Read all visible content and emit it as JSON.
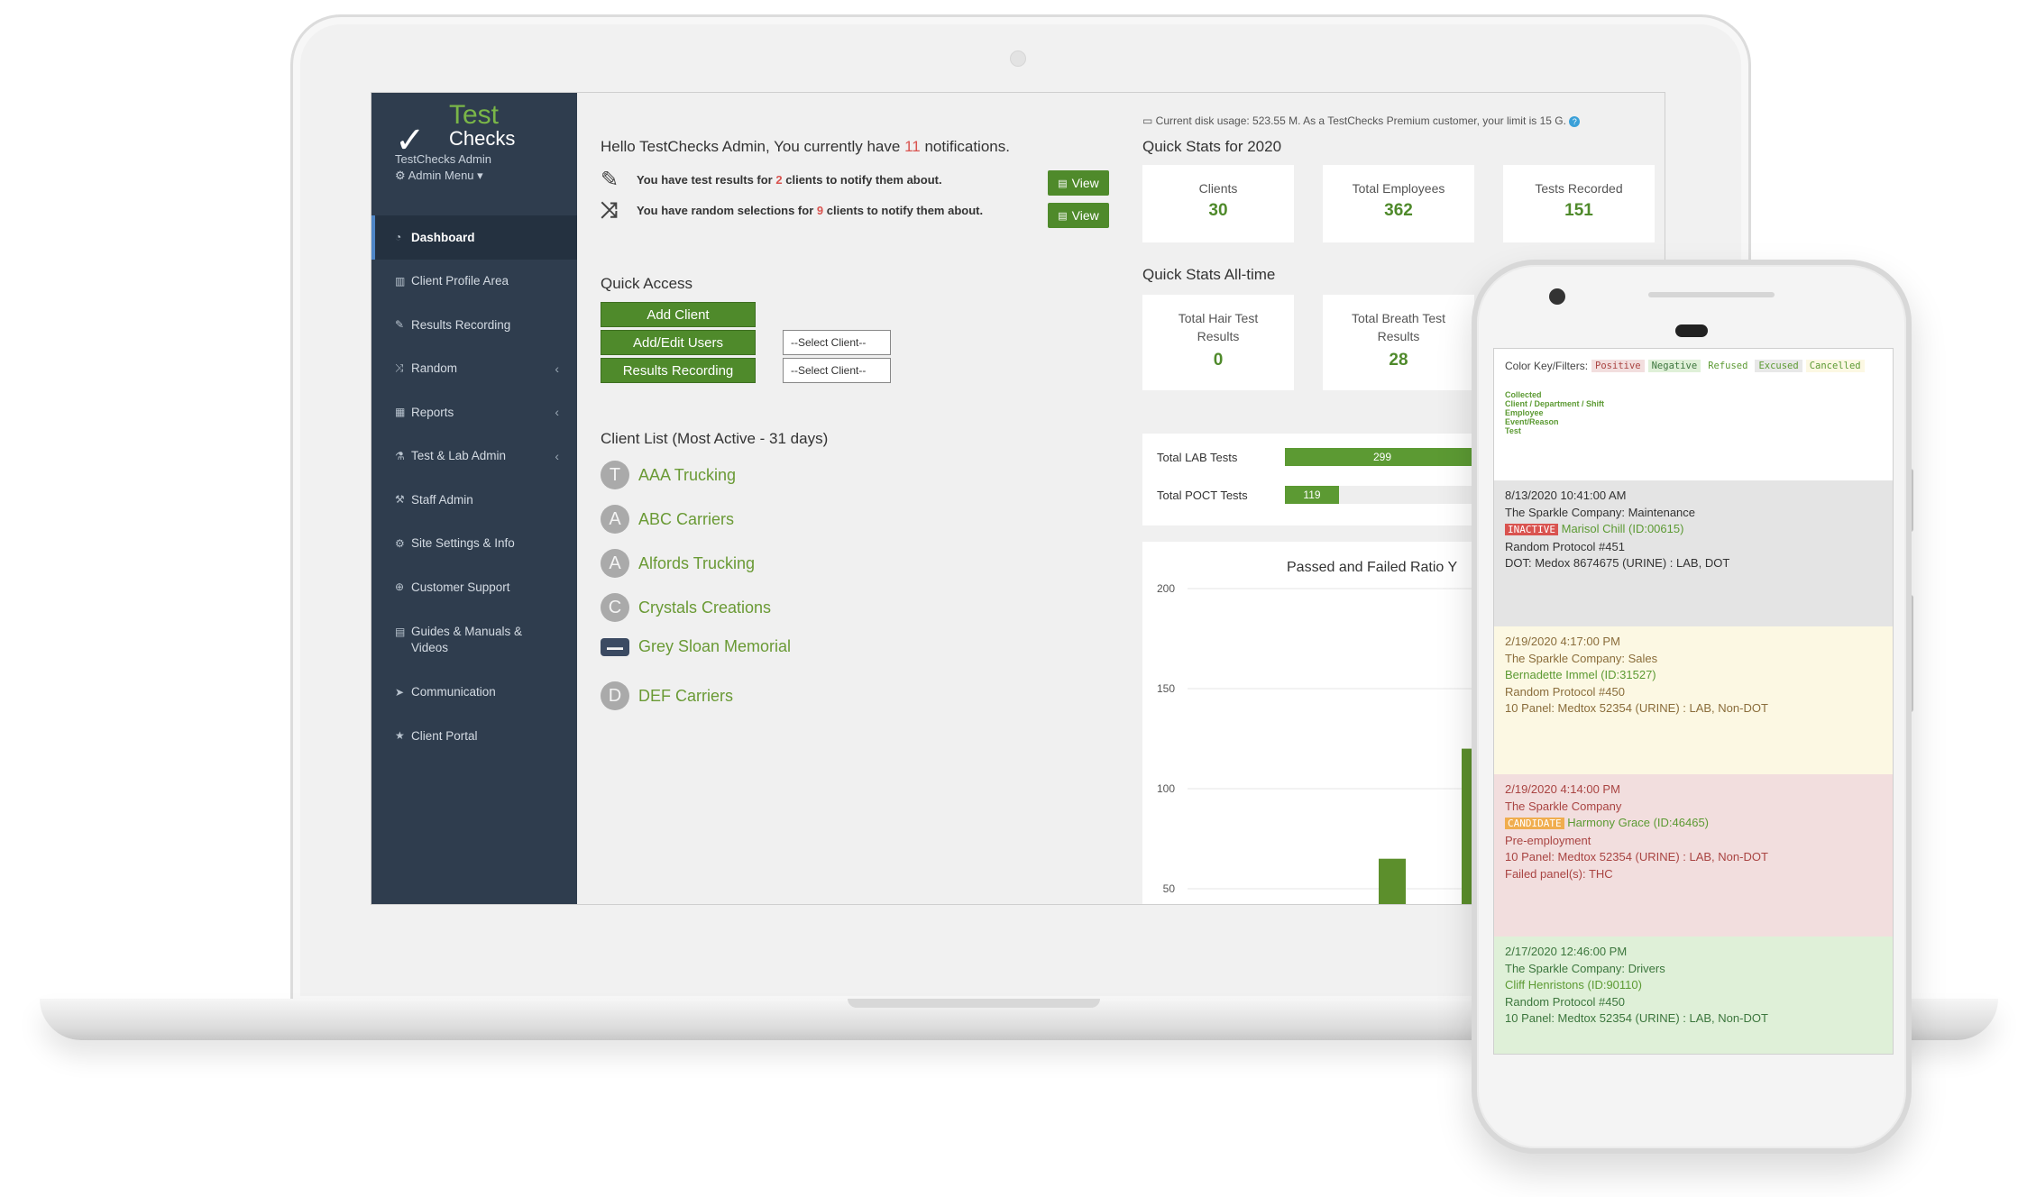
{
  "sidebar": {
    "logo_test": "Test",
    "logo_checks": "Checks",
    "admin_name": "TestChecks Admin",
    "admin_menu": "Admin Menu",
    "items": [
      {
        "label": "Dashboard",
        "icon": "dashboard-icon"
      },
      {
        "label": "Client Profile Area",
        "icon": "bank-icon"
      },
      {
        "label": "Results Recording",
        "icon": "edit-icon"
      },
      {
        "label": "Random",
        "icon": "shuffle-icon"
      },
      {
        "label": "Reports",
        "icon": "table-icon"
      },
      {
        "label": "Test & Lab Admin",
        "icon": "flask-icon"
      },
      {
        "label": "Staff Admin",
        "icon": "gavel-icon"
      },
      {
        "label": "Site Settings & Info",
        "icon": "cogs-icon"
      },
      {
        "label": "Customer Support",
        "icon": "life-ring-icon"
      },
      {
        "label": "Guides & Manuals & Videos",
        "icon": "file-icon"
      },
      {
        "label": "Communication",
        "icon": "send-icon"
      },
      {
        "label": "Client Portal",
        "icon": "star-icon"
      }
    ]
  },
  "greeting": {
    "prefix": "Hello TestChecks Admin, You currently have",
    "count": "11",
    "suffix": "notifications."
  },
  "notifications": [
    {
      "prefix": "You have test results for",
      "count": "2",
      "suffix": "clients to notify them about.",
      "button": "View"
    },
    {
      "prefix": "You have random selections for",
      "count": "9",
      "suffix": "clients to notify them about.",
      "button": "View"
    }
  ],
  "quick_access": {
    "title": "Quick Access",
    "buttons": [
      "Add Client",
      "Add/Edit Users",
      "Results Recording"
    ],
    "select_placeholder": "--Select Client--"
  },
  "client_list": {
    "title": "Client List (Most Active - 31 days)",
    "clients": [
      {
        "initial": "T",
        "name": "AAA Trucking"
      },
      {
        "initial": "A",
        "name": "ABC Carriers"
      },
      {
        "initial": "A",
        "name": "Alfords Trucking"
      },
      {
        "initial": "C",
        "name": "Crystals Creations"
      },
      {
        "initial": "",
        "name": "Grey Sloan Memorial"
      },
      {
        "initial": "D",
        "name": "DEF Carriers"
      }
    ]
  },
  "disk_usage": "Current disk usage: 523.55 M. As a TestChecks Premium customer, your limit is 15 G.",
  "quick_stats_year": {
    "title": "Quick Stats for 2020",
    "stats": [
      {
        "label": "Clients",
        "value": "30"
      },
      {
        "label": "Total Employees",
        "value": "362"
      },
      {
        "label": "Tests Recorded",
        "value": "151"
      }
    ]
  },
  "quick_stats_all": {
    "title": "Quick Stats All-time",
    "stats": [
      {
        "label": "Total Hair Test Results",
        "value": "0"
      },
      {
        "label": "Total Breath Test Results",
        "value": "28"
      }
    ]
  },
  "test_totals": [
    {
      "label": "Total LAB Tests",
      "value": "299",
      "fill": 0.9
    },
    {
      "label": "Total POCT Tests",
      "value": "119",
      "fill": 0.25
    }
  ],
  "chart_data": {
    "type": "bar",
    "title": "Passed and Failed Ratio Y",
    "yticks": [
      200,
      150,
      100,
      50
    ],
    "ylim": [
      0,
      200
    ],
    "categories": [
      "",
      ""
    ],
    "values": [
      65,
      120
    ],
    "color": "#5c8f2c"
  },
  "phone": {
    "color_key_label": "Color Key/Filters:",
    "filters": [
      {
        "label": "Positive",
        "bg": "#f2dede",
        "fg": "#a94442"
      },
      {
        "label": "Negative",
        "bg": "#dff0d8",
        "fg": "#3c763d"
      },
      {
        "label": "Refused",
        "bg": "#ffffff",
        "fg": "#5c9a33"
      },
      {
        "label": "Excused",
        "bg": "#e8e8e8",
        "fg": "#5c9a33"
      },
      {
        "label": "Cancelled",
        "bg": "#fcf8e3",
        "fg": "#5c9a33"
      }
    ],
    "legend": [
      "Collected",
      "Client / Department / Shift",
      "Employee",
      "Event/Reason",
      "Test"
    ],
    "entries": [
      {
        "date": "8/13/2020 10:41:00 AM",
        "client": "The Sparkle Company: Maintenance",
        "badge": "INACTIVE",
        "employee": "Marisol Chill (ID:00615)",
        "event": "Random Protocol #451",
        "test": "DOT: Medox 8674675 (URINE) : LAB, DOT",
        "extra": ""
      },
      {
        "date": "2/19/2020 4:17:00 PM",
        "client": "The Sparkle Company: Sales",
        "badge": "",
        "employee": "Bernadette Immel (ID:31527)",
        "event": "Random Protocol #450",
        "test": "10 Panel: Medtox 52354 (URINE) : LAB, Non-DOT",
        "extra": ""
      },
      {
        "date": "2/19/2020 4:14:00 PM",
        "client": "The Sparkle Company",
        "badge": "CANDIDATE",
        "employee": "Harmony Grace (ID:46465)",
        "event": "Pre-employment",
        "test": "10 Panel: Medtox 52354 (URINE) : LAB, Non-DOT",
        "extra": "Failed panel(s): THC"
      },
      {
        "date": "2/17/2020 12:46:00 PM",
        "client": "The Sparkle Company: Drivers",
        "badge": "",
        "employee": "Cliff Henristons (ID:90110)",
        "event": "Random Protocol #450",
        "test": "10 Panel: Medtox 52354 (URINE) : LAB, Non-DOT",
        "extra": ""
      }
    ]
  }
}
